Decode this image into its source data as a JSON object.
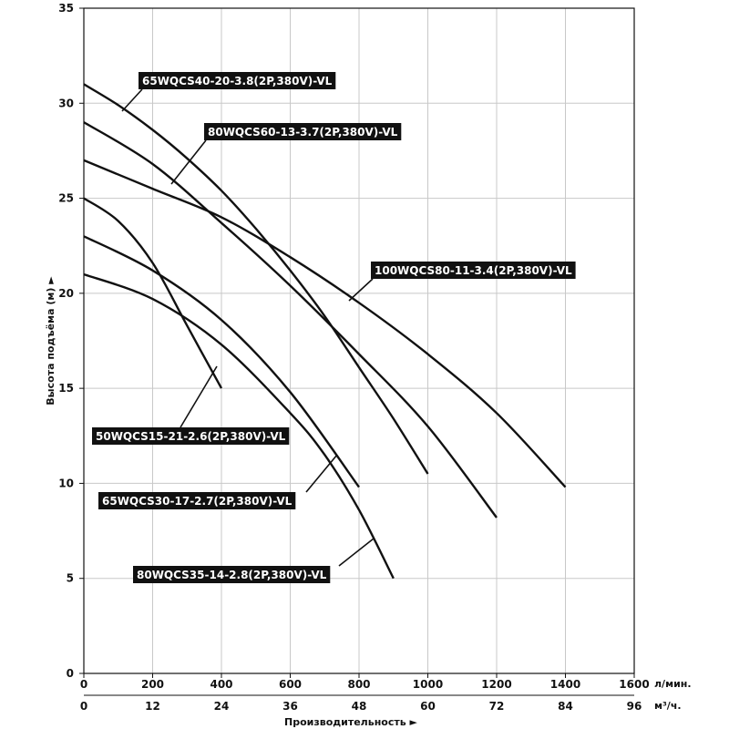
{
  "chart_data": {
    "type": "line",
    "xlabel": "Производительность",
    "ylabel": "Высота подъёма (м)",
    "x_unit": "л/мин.",
    "x2_unit": "м³/ч.",
    "x_ticks": [
      "0",
      "200",
      "400",
      "600",
      "800",
      "1000",
      "1200",
      "1400",
      "1600"
    ],
    "x2_ticks": [
      "0",
      "12",
      "24",
      "36",
      "48",
      "60",
      "72",
      "84",
      "96"
    ],
    "y_ticks": [
      "0",
      "5",
      "10",
      "15",
      "20",
      "25",
      "30",
      "35"
    ],
    "xlim": [
      0,
      1600
    ],
    "ylim": [
      0,
      35
    ],
    "grid": true,
    "series": [
      {
        "name": "65WQCS40-20-3.8(2P,380V)-VL",
        "x": [
          0,
          100,
          200,
          300,
          400,
          500,
          600,
          700,
          800,
          900,
          1000
        ],
        "y": [
          31,
          29.9,
          28.6,
          27.1,
          25.4,
          23.4,
          21.2,
          18.8,
          16.1,
          13.4,
          10.5
        ]
      },
      {
        "name": "80WQCS60-13-3.7(2P,380V)-VL",
        "x": [
          0,
          200,
          400,
          600,
          800,
          1000,
          1200
        ],
        "y": [
          29,
          26.8,
          23.7,
          20.4,
          16.8,
          13,
          8.2
        ]
      },
      {
        "name": "100WQCS80-11-3.4(2P,380V)-VL",
        "x": [
          0,
          200,
          400,
          600,
          800,
          1000,
          1200,
          1400
        ],
        "y": [
          27,
          25.5,
          24,
          21.9,
          19.5,
          16.8,
          13.7,
          9.8
        ]
      },
      {
        "name": "50WQCS15-21-2.6(2P,380V)-VL",
        "x": [
          0,
          100,
          200,
          300,
          400
        ],
        "y": [
          25,
          23.8,
          21.6,
          18.3,
          15
        ]
      },
      {
        "name": "65WQCS30-17-2.7(2P,380V)-VL",
        "x": [
          0,
          200,
          400,
          600,
          800
        ],
        "y": [
          23,
          21.2,
          18.6,
          14.8,
          9.8
        ]
      },
      {
        "name": "80WQCS35-14-2.8(2P,380V)-VL",
        "x": [
          0,
          200,
          400,
          600,
          700,
          800,
          900
        ],
        "y": [
          21,
          19.7,
          17.3,
          13.7,
          11.5,
          8.6,
          5
        ]
      }
    ]
  }
}
